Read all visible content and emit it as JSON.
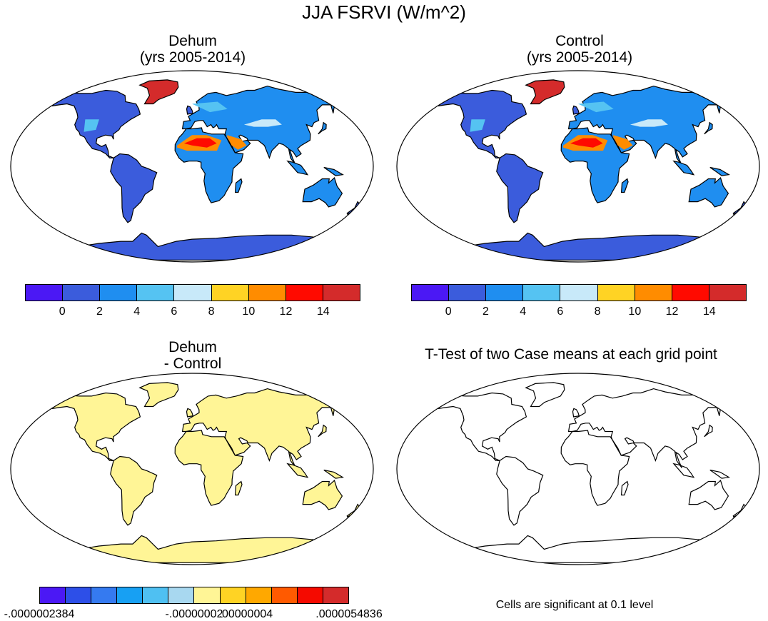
{
  "title": "JJA FSRVI (W/m^2)",
  "panels": {
    "top_left": {
      "line1": "Dehum",
      "line2": "(yrs 2005-2014)"
    },
    "top_right": {
      "line1": "Control",
      "line2": "(yrs 2005-2014)"
    },
    "bottom_left": {
      "line1": "Dehum",
      "line2": "- Control"
    },
    "bottom_right": {
      "line1": "T-Test of two Case means at each grid point"
    }
  },
  "colorbar_top": {
    "colors": [
      "#4b18f5",
      "#3b5cdc",
      "#1f8ef0",
      "#55c3f2",
      "#c8e9f9",
      "#ffd324",
      "#ff8c00",
      "#ff0a00",
      "#d42b2b"
    ],
    "ticks": [
      "0",
      "2",
      "4",
      "6",
      "8",
      "10",
      "12",
      "14"
    ]
  },
  "colorbar_bottom": {
    "colors": [
      "#4b18f5",
      "#2d4fe8",
      "#357af0",
      "#17a0f3",
      "#4fc0f2",
      "#a8d8f0",
      "#fff596",
      "#ffd324",
      "#ffa800",
      "#ff5a00",
      "#f50a00",
      "#d42b2b"
    ],
    "ticks": [
      "-.0000002384",
      "-.00000002",
      ".00000004",
      ".0000054836"
    ]
  },
  "significance_note": "Cells are significant at 0.1 level",
  "colors": {
    "land_diff": "#fff596",
    "ocean": "#ffffff",
    "coast": "#000000"
  }
}
